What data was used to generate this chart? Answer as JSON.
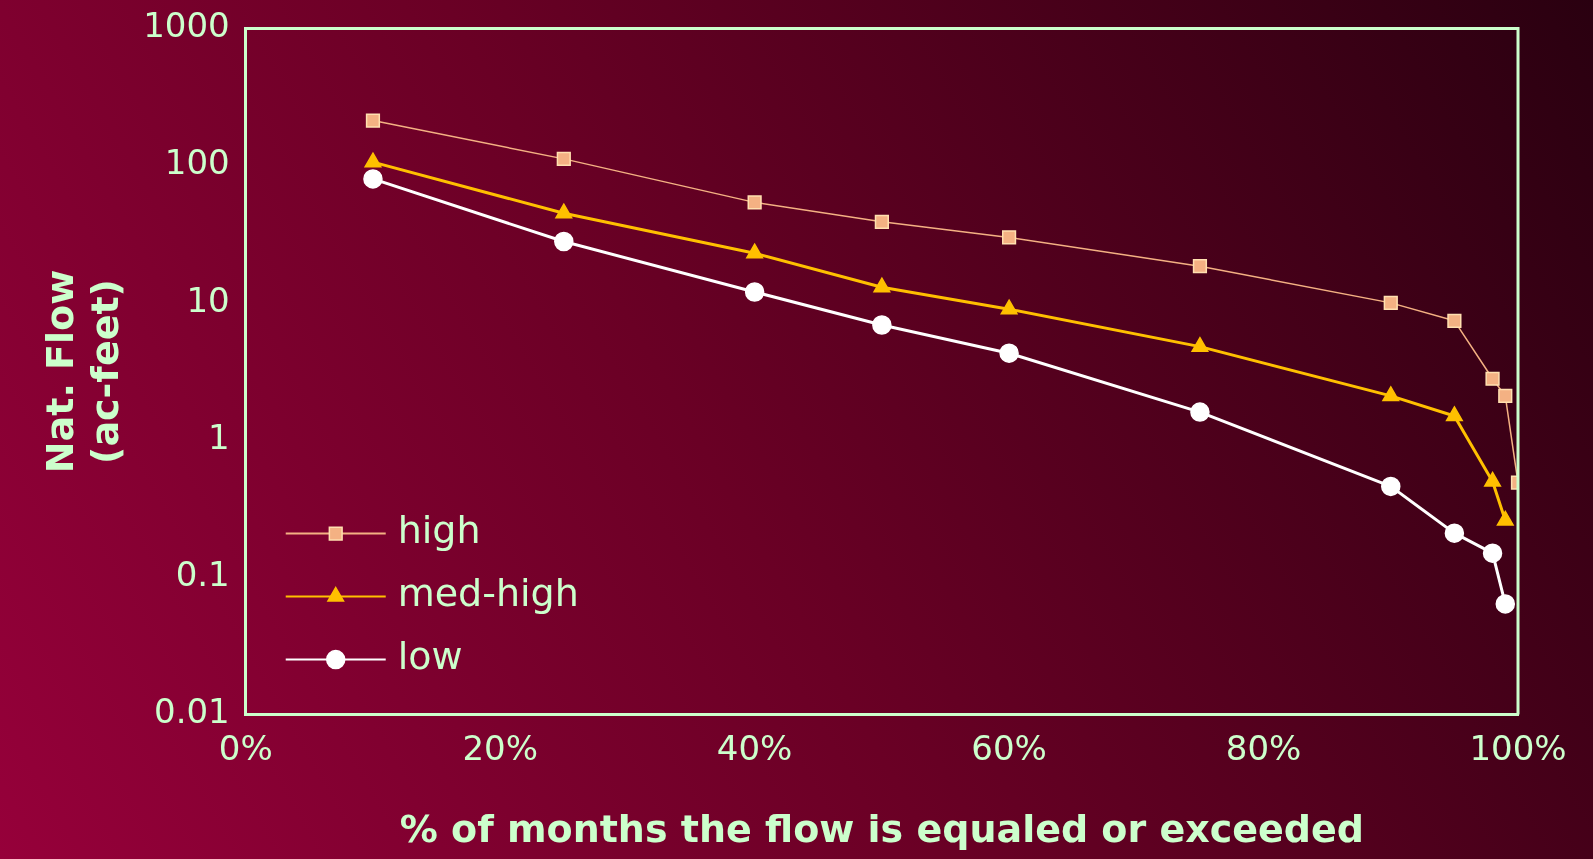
{
  "chart_data": {
    "type": "line",
    "xlabel": "% of months the flow is equaled or exceeded",
    "ylabel": "Nat. Flow\n(ac-feet)",
    "log": "y",
    "grid": false,
    "legend": "bottom left",
    "xlim": [
      0,
      100
    ],
    "xticks": [
      {
        "value": 0,
        "label": "0%"
      },
      {
        "value": 20,
        "label": "20%"
      },
      {
        "value": 40,
        "label": "40%"
      },
      {
        "value": 60,
        "label": "60%"
      },
      {
        "value": 80,
        "label": "80%"
      },
      {
        "value": 100,
        "label": "100%"
      }
    ],
    "ylim": [
      0.01,
      1000
    ],
    "yticks": [
      0.01,
      0.1,
      1,
      10,
      100,
      1000
    ],
    "series": [
      {
        "name": "high",
        "color": "#f4b183",
        "marker": "square",
        "x": [
          10,
          25,
          40,
          50,
          60,
          75,
          90,
          95,
          98,
          99,
          100
        ],
        "values": [
          213,
          112,
          54,
          39,
          30,
          18.5,
          10,
          7.4,
          2.8,
          2.1,
          0.49
        ]
      },
      {
        "name": "med-high",
        "color": "#ffc000",
        "marker": "triangle",
        "x": [
          10,
          25,
          40,
          50,
          60,
          75,
          90,
          95,
          98,
          99
        ],
        "values": [
          106,
          45,
          23,
          13,
          9,
          4.8,
          2.1,
          1.5,
          0.5,
          0.26
        ]
      },
      {
        "name": "low",
        "color": "#ffffff",
        "marker": "circle",
        "x": [
          10,
          25,
          40,
          50,
          60,
          75,
          90,
          95,
          98,
          99
        ],
        "values": [
          80,
          28,
          12,
          6.9,
          4.3,
          1.6,
          0.46,
          0.21,
          0.15,
          0.064
        ]
      }
    ]
  }
}
